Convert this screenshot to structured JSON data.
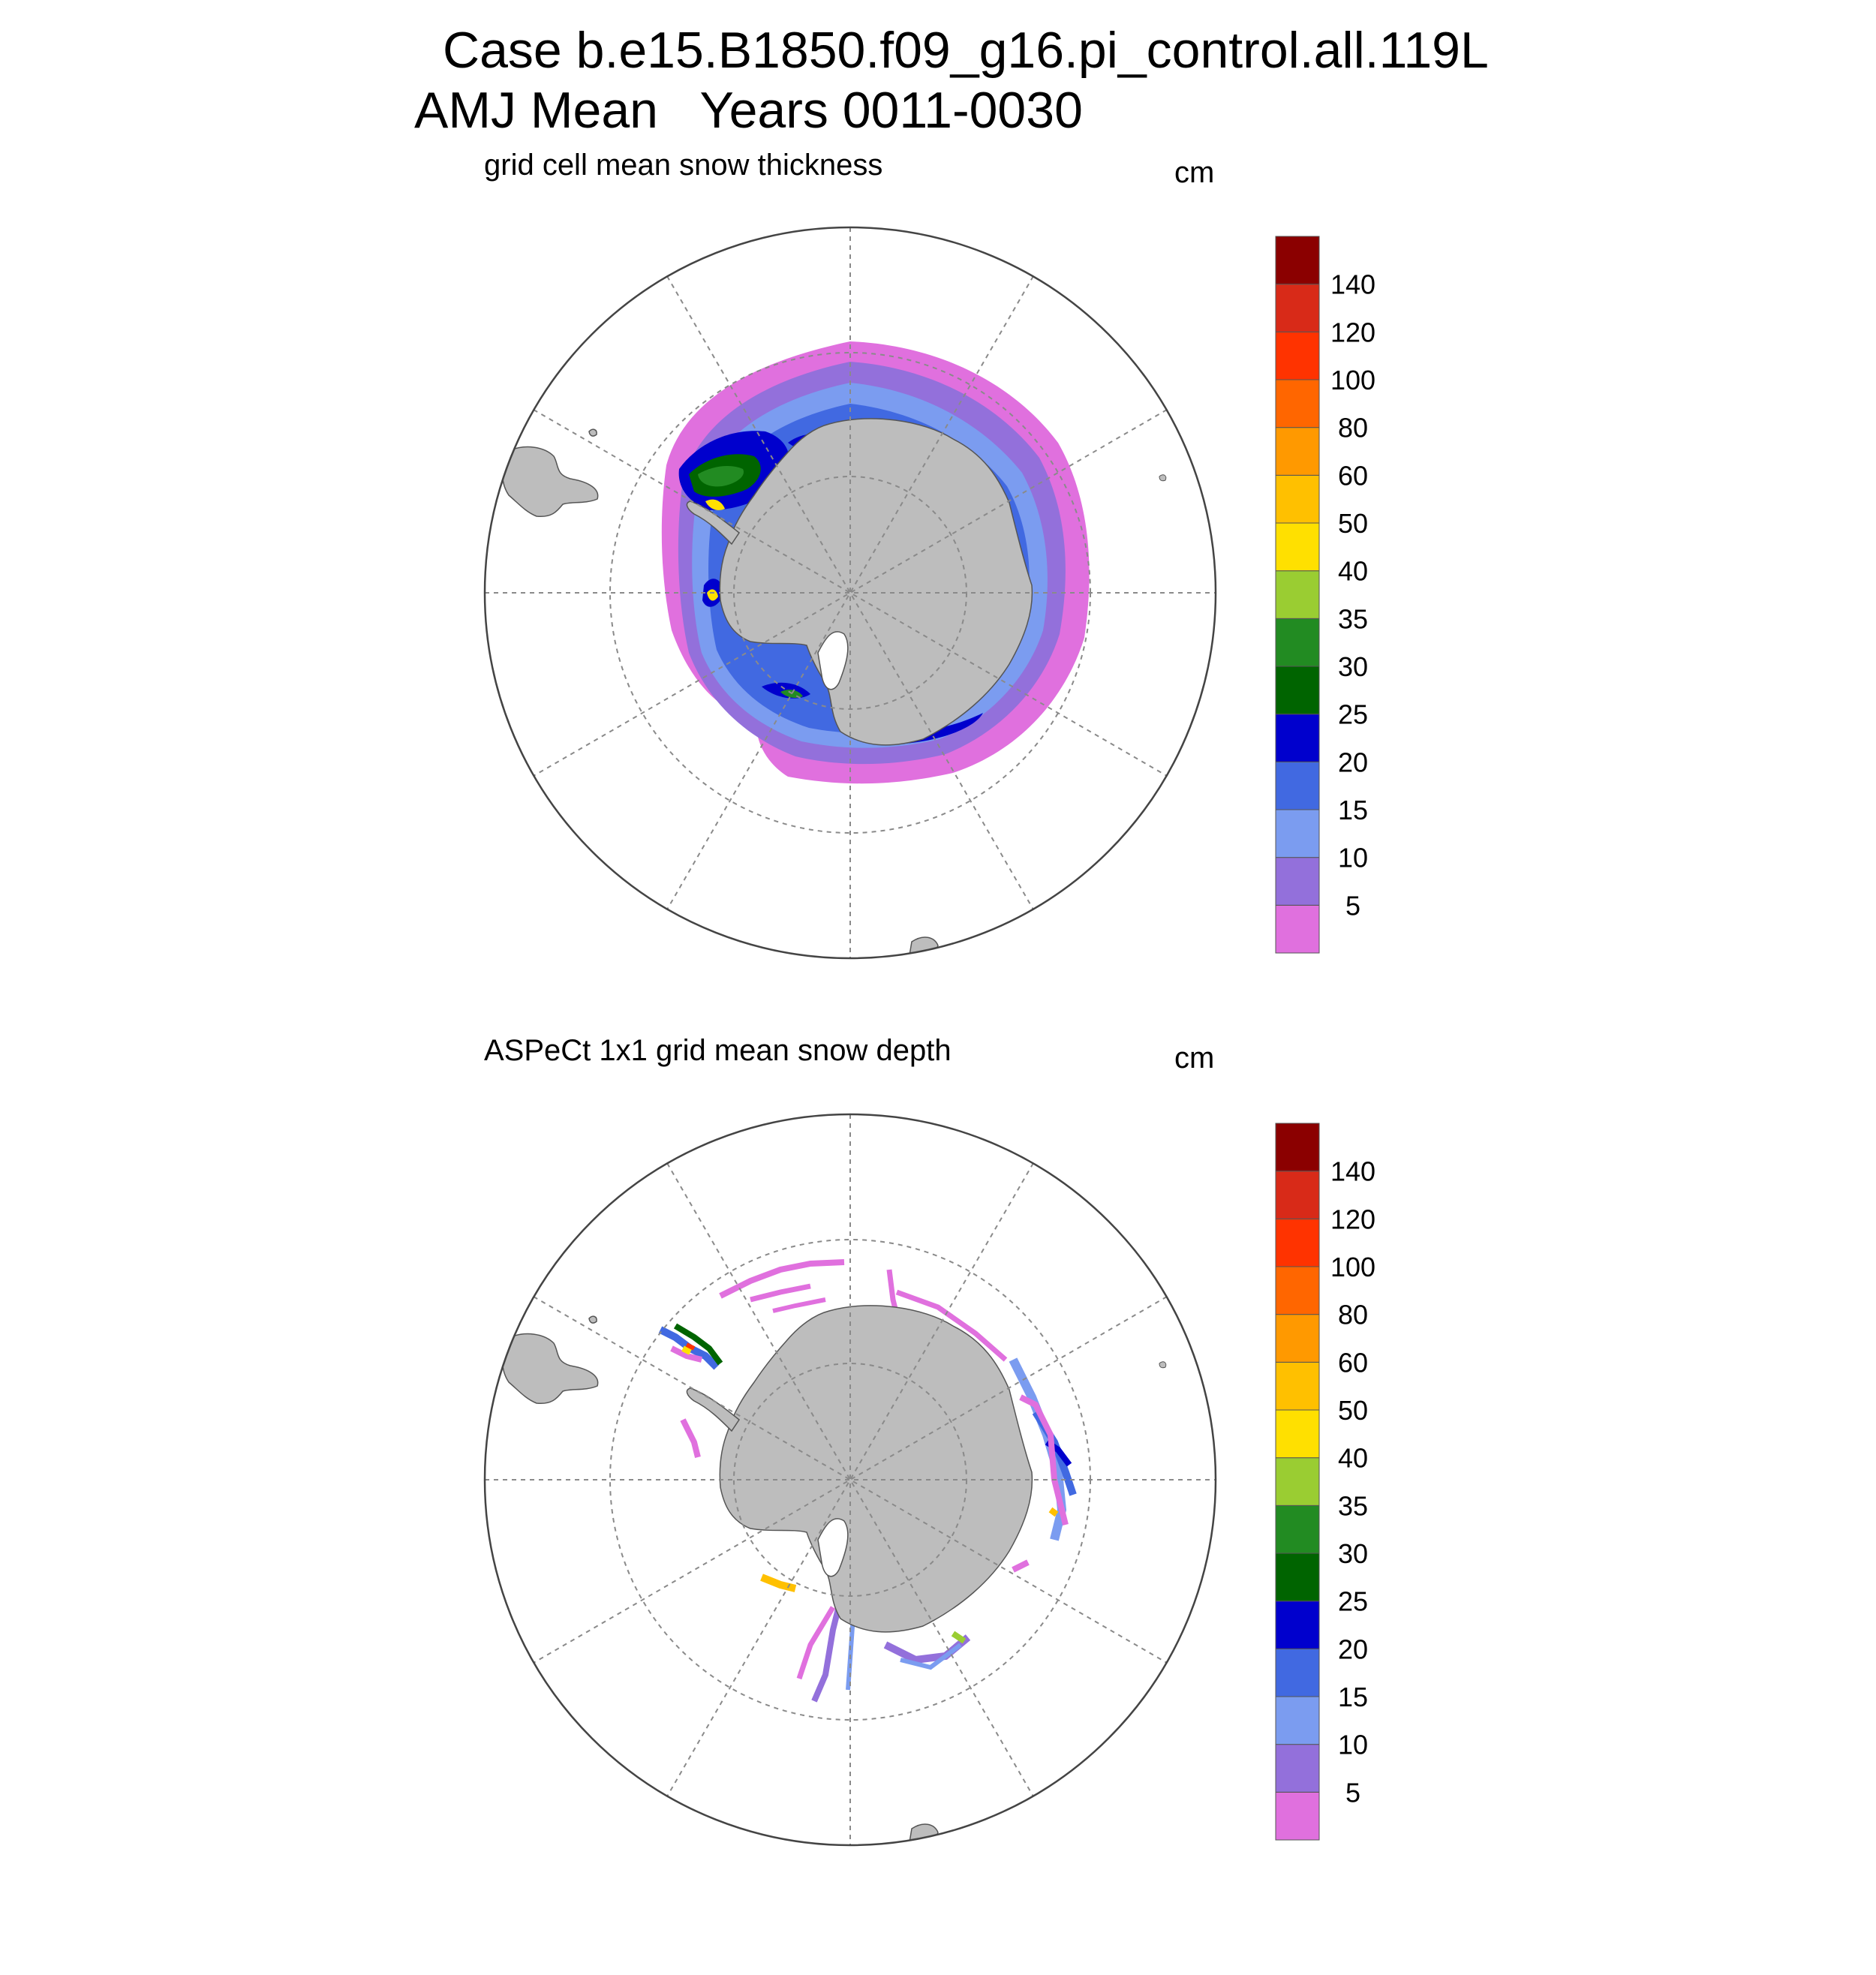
{
  "header": {
    "case_line": "Case b.e15.B1850.f09_g16.pi_control.all.119L",
    "season": "AMJ Mean",
    "years": "Years 0011-0030"
  },
  "panels": [
    {
      "title": "grid cell mean snow thickness",
      "units": "cm"
    },
    {
      "title": "ASPeCt 1x1 grid mean snow depth",
      "units": "cm"
    }
  ],
  "colorbar": {
    "labels": [
      "5",
      "10",
      "15",
      "20",
      "25",
      "30",
      "35",
      "40",
      "50",
      "60",
      "80",
      "100",
      "120",
      "140"
    ],
    "colors": [
      "#e070de",
      "#9370db",
      "#7b9cf0",
      "#4169e1",
      "#0000cd",
      "#006400",
      "#228b22",
      "#9acd32",
      "#ffe000",
      "#ffc000",
      "#ff9900",
      "#ff6600",
      "#ff3300",
      "#d82a18",
      "#8b0000"
    ]
  },
  "map_style": {
    "land": "#bdbdbd",
    "graticule": "#8a8a8a"
  }
}
